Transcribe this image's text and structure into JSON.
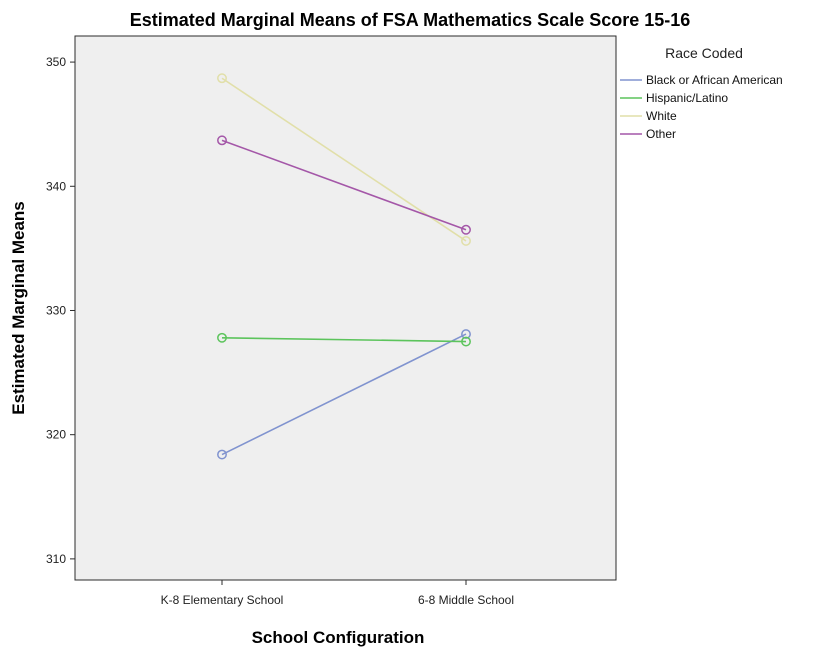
{
  "chart_data": {
    "type": "line",
    "title": "Estimated Marginal Means of FSA  Mathematics Scale Score 15-16",
    "xlabel": "School Configuration",
    "ylabel": "Estimated Marginal Means",
    "categories": [
      "K-8 Elementary School",
      "6-8 Middle School"
    ],
    "ylim": [
      308.3,
      352.1
    ],
    "yticks": [
      310,
      320,
      330,
      340,
      350
    ],
    "grid": false,
    "legend_title": "Race Coded",
    "legend_position": "right",
    "series": [
      {
        "name": "Black or African American",
        "values": [
          318.4,
          328.1
        ],
        "color": "#8093cf"
      },
      {
        "name": "Hispanic/Latino",
        "values": [
          327.8,
          327.5
        ],
        "color": "#5cc45c"
      },
      {
        "name": "White",
        "values": [
          348.7,
          335.6
        ],
        "color": "#e1dfa9"
      },
      {
        "name": "Other",
        "values": [
          343.7,
          336.5
        ],
        "color": "#a457a8"
      }
    ],
    "plot_background": "#efefef"
  }
}
